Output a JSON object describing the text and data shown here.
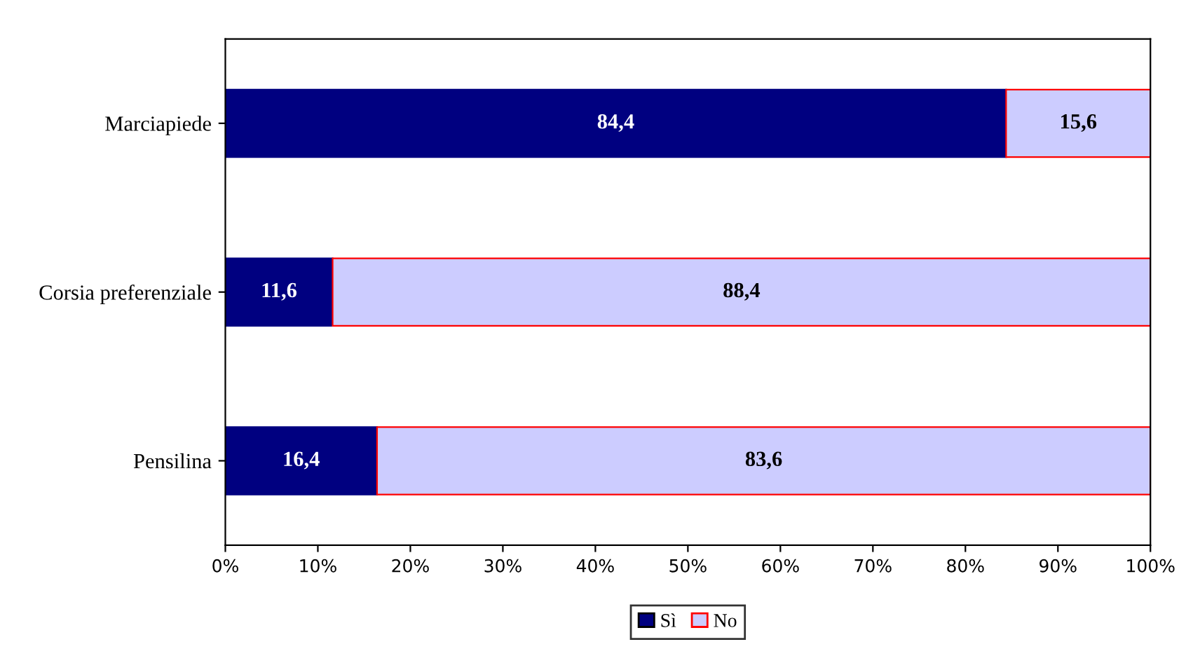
{
  "chart_data": {
    "type": "bar",
    "orientation": "horizontal",
    "stacked": true,
    "categories": [
      "Marciapiede",
      "Corsia preferenziale",
      "Pensilina"
    ],
    "series": [
      {
        "name": "Sì",
        "color": "#000080",
        "values": [
          84.4,
          11.6,
          16.4
        ],
        "value_labels": [
          "84,4",
          "11,6",
          "16,4"
        ]
      },
      {
        "name": "No",
        "color": "#ccccff",
        "values": [
          15.6,
          88.4,
          83.6
        ],
        "value_labels": [
          "15,6",
          "88,4",
          "83,6"
        ]
      }
    ],
    "xlim": [
      0,
      100
    ],
    "xticks": [
      {
        "value": 0,
        "label": "0%"
      },
      {
        "value": 10,
        "label": "10%"
      },
      {
        "value": 20,
        "label": "20%"
      },
      {
        "value": 30,
        "label": "30%"
      },
      {
        "value": 40,
        "label": "40%"
      },
      {
        "value": 50,
        "label": "50%"
      },
      {
        "value": 60,
        "label": "60%"
      },
      {
        "value": 70,
        "label": "70%"
      },
      {
        "value": 80,
        "label": "80%"
      },
      {
        "value": 90,
        "label": "90%"
      },
      {
        "value": 100,
        "label": "100%"
      }
    ],
    "grid": false,
    "legend": "bottom"
  }
}
